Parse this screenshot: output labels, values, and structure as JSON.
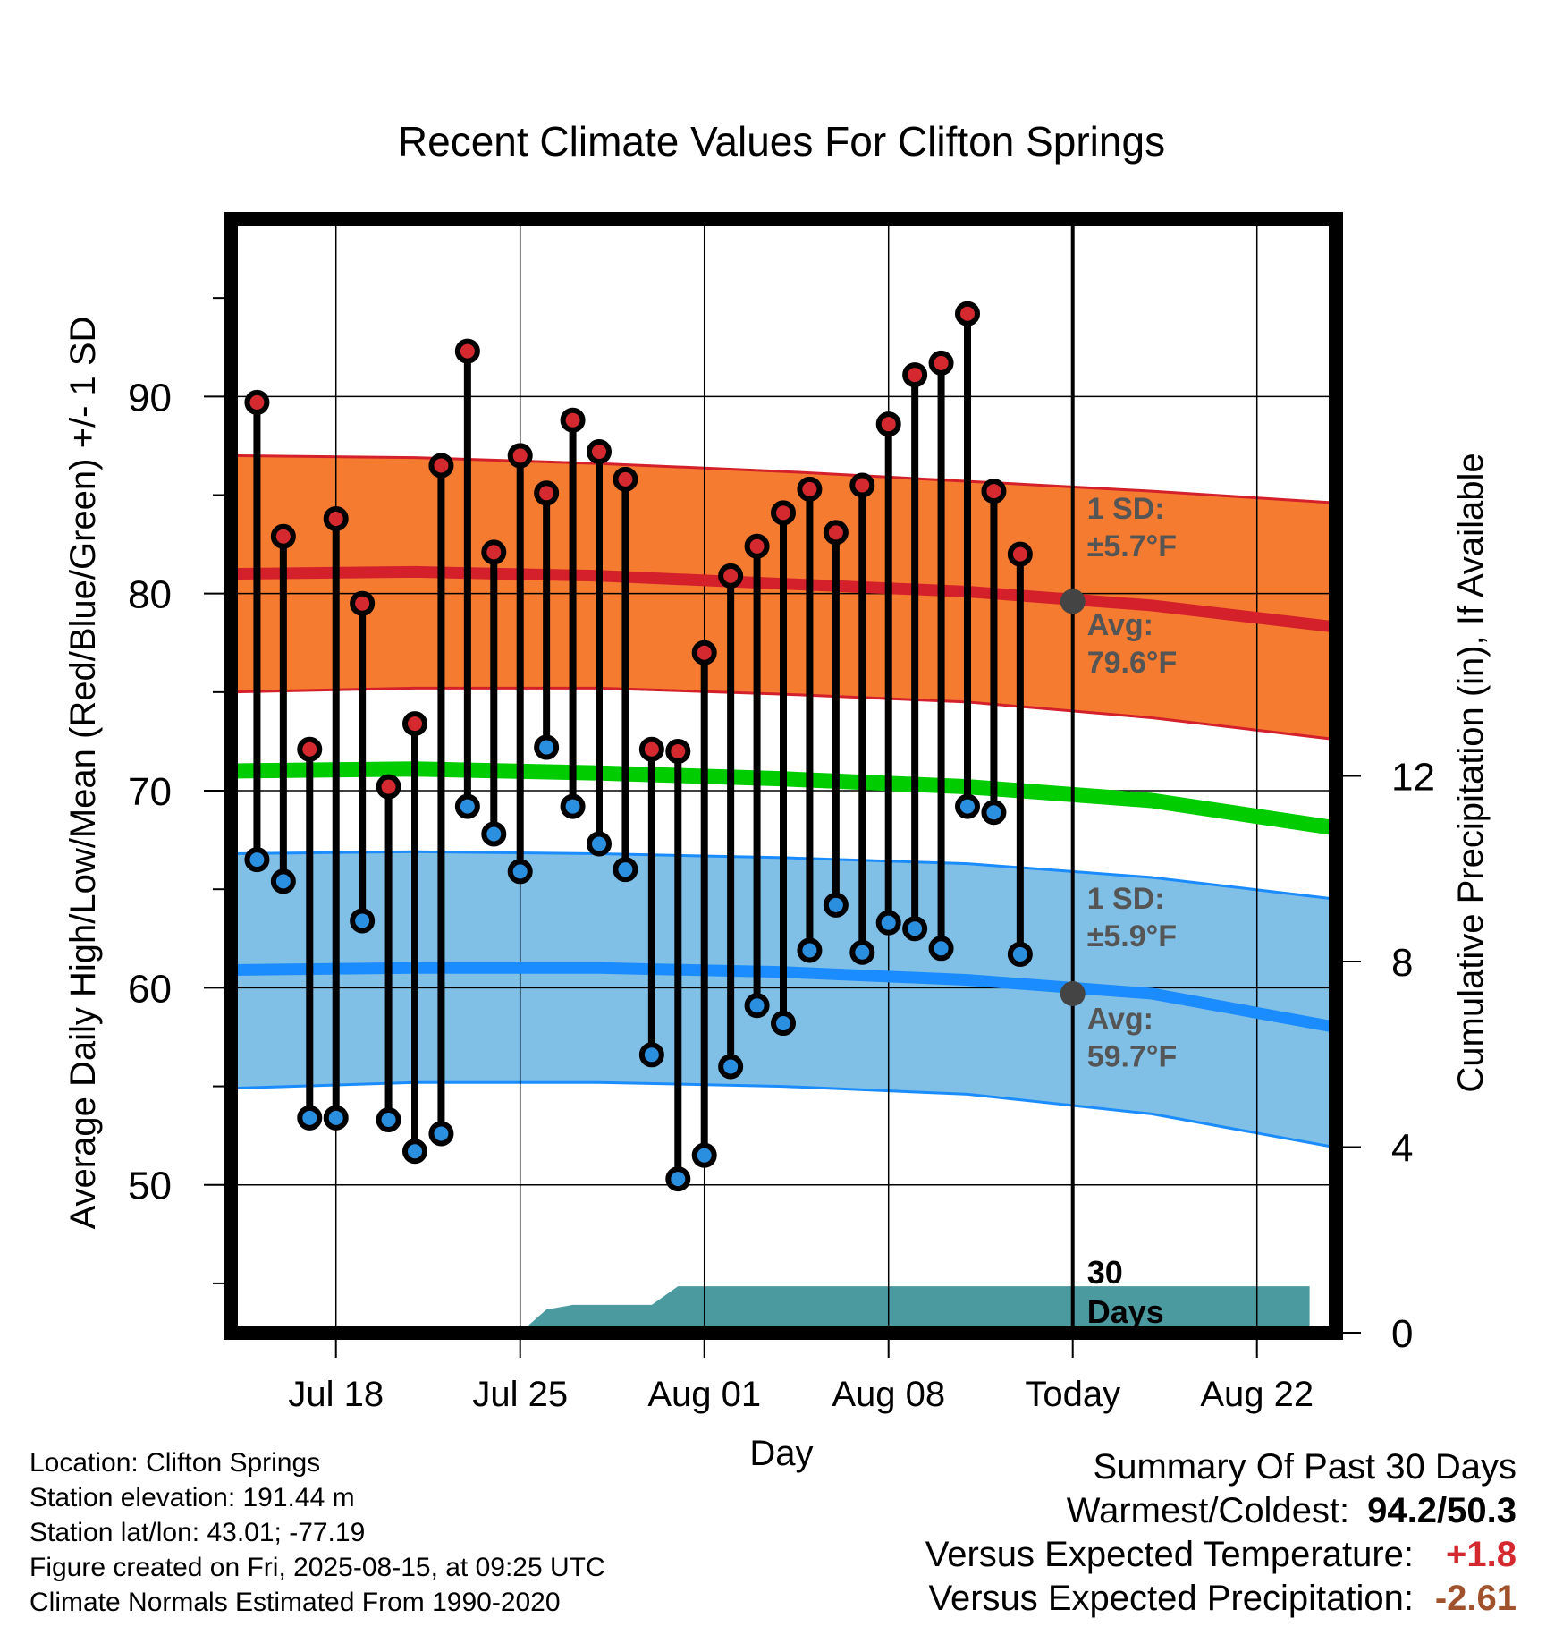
{
  "chart_data": {
    "type": "line",
    "title": "Recent Climate Values For Clifton Springs",
    "xlabel": "Day",
    "ylabel": "Average Daily High/Low/Mean (Red/Blue/Green) +/- 1 SD",
    "y2label": "Cumulative Precipitation (in), If Available",
    "x_range": [
      "2025-07-14",
      "2025-08-25"
    ],
    "ylim": [
      42.5,
      99
    ],
    "y_ticks": [
      "50",
      "60",
      "70",
      "80",
      "90"
    ],
    "y2lim": [
      0,
      24
    ],
    "y2_ticks": [
      "0",
      "4",
      "8",
      "12"
    ],
    "x_ticks": [
      {
        "date": "2025-07-18",
        "label": "Jul 18"
      },
      {
        "date": "2025-07-25",
        "label": "Jul 25"
      },
      {
        "date": "2025-08-01",
        "label": "Aug 01"
      },
      {
        "date": "2025-08-08",
        "label": "Aug 08"
      },
      {
        "date": "2025-08-15",
        "label": "Today"
      },
      {
        "date": "2025-08-22",
        "label": "Aug 22"
      }
    ],
    "grid": true,
    "daily": {
      "dates": [
        "2025-07-15",
        "2025-07-16",
        "2025-07-17",
        "2025-07-18",
        "2025-07-19",
        "2025-07-20",
        "2025-07-21",
        "2025-07-22",
        "2025-07-23",
        "2025-07-24",
        "2025-07-25",
        "2025-07-26",
        "2025-07-27",
        "2025-07-28",
        "2025-07-29",
        "2025-07-30",
        "2025-07-31",
        "2025-08-01",
        "2025-08-02",
        "2025-08-03",
        "2025-08-04",
        "2025-08-05",
        "2025-08-06",
        "2025-08-07",
        "2025-08-08",
        "2025-08-09",
        "2025-08-10",
        "2025-08-11",
        "2025-08-12",
        "2025-08-13",
        "2025-08-14"
      ],
      "high": [
        89.7,
        82.9,
        72.1,
        83.8,
        79.5,
        70.2,
        73.4,
        86.5,
        92.3,
        82.1,
        87.0,
        85.1,
        88.8,
        87.2,
        85.8,
        72.1,
        72.0,
        77.0,
        80.9,
        82.4,
        84.1,
        85.3,
        83.1,
        85.5,
        88.6,
        91.1,
        91.7,
        94.2,
        85.2,
        82.0,
        null
      ],
      "low": [
        66.5,
        65.4,
        53.4,
        53.4,
        63.4,
        53.3,
        51.7,
        52.6,
        69.2,
        67.8,
        65.9,
        72.2,
        69.2,
        67.3,
        66.0,
        56.6,
        50.3,
        51.5,
        56.0,
        59.1,
        58.2,
        61.9,
        64.2,
        61.8,
        63.3,
        63.0,
        62.0,
        69.2,
        68.9,
        61.7,
        null
      ]
    },
    "normals": {
      "dates": [
        "2025-07-14",
        "2025-07-21",
        "2025-07-28",
        "2025-08-04",
        "2025-08-11",
        "2025-08-18",
        "2025-08-25"
      ],
      "high_avg": [
        81.0,
        81.1,
        80.9,
        80.5,
        80.1,
        79.4,
        78.3
      ],
      "high_sd_upper": [
        87.0,
        86.9,
        86.6,
        86.2,
        85.7,
        85.2,
        84.6
      ],
      "high_sd_lower": [
        75.0,
        75.2,
        75.2,
        74.9,
        74.5,
        73.7,
        72.6
      ],
      "low_avg": [
        60.9,
        61.0,
        61.0,
        60.8,
        60.4,
        59.7,
        58.0
      ],
      "low_sd_upper": [
        66.8,
        66.9,
        66.8,
        66.6,
        66.3,
        65.6,
        64.5
      ],
      "low_sd_lower": [
        54.9,
        55.2,
        55.2,
        55.0,
        54.6,
        53.6,
        51.9
      ],
      "mean": [
        71.0,
        71.1,
        70.9,
        70.6,
        70.2,
        69.5,
        68.1
      ]
    },
    "precip": {
      "dates": [
        "2025-07-14",
        "2025-07-25",
        "2025-07-26",
        "2025-07-27",
        "2025-07-30",
        "2025-07-31",
        "2025-08-15",
        "2025-08-24"
      ],
      "cumulative": [
        0.0,
        0.0,
        0.5,
        0.6,
        0.6,
        1.0,
        1.0,
        1.0
      ]
    },
    "annotations": {
      "high_sd": "1 SD:\n±5.7°F",
      "high_avg": "Avg:\n79.6°F",
      "low_sd": "1 SD:\n±5.9°F",
      "low_avg": "Avg:\n59.7°F",
      "days": "30\nDays",
      "today_date": "2025-08-15",
      "today_high_avg": 79.6,
      "today_low_avg": 59.7
    },
    "colors": {
      "high_band": "#f47b2f",
      "high_line": "#d4202a",
      "mean_line": "#00cc00",
      "low_band": "#80bfe6",
      "low_line": "#1a8cff",
      "precip": "#4a9aa0",
      "high_marker": "#d42a2f",
      "low_marker": "#2b8fe0",
      "annotation": "#555555"
    }
  },
  "info": {
    "location": "Location: Clifton Springs",
    "elevation": "Station elevation: 191.44 m",
    "latlon": "Station lat/lon: 43.01; -77.19",
    "created": "Figure created on Fri, 2025-08-15, at 09:25 UTC",
    "normals": "Climate Normals Estimated From 1990-2020"
  },
  "summary": {
    "heading": "Summary Of Past 30 Days",
    "warm_cold_label": "Warmest/Coldest:",
    "warm_cold_value": "94.2/50.3",
    "temp_label": "Versus Expected Temperature:",
    "temp_value": "+1.8",
    "temp_color": "#d42a2f",
    "precip_label": "Versus Expected Precipitation:",
    "precip_value": "-2.61",
    "precip_color": "#a0522d"
  }
}
